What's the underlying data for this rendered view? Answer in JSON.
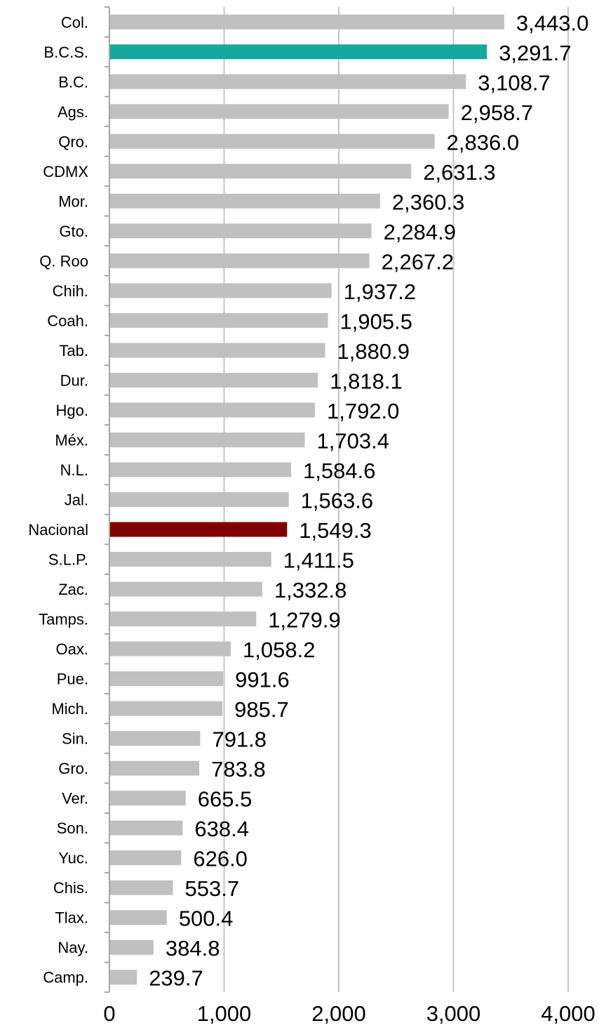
{
  "chart_data": {
    "type": "bar",
    "orientation": "horizontal",
    "categories": [
      "Col.",
      "B.C.S.",
      "B.C.",
      "Ags.",
      "Qro.",
      "CDMX",
      "Mor.",
      "Gto.",
      "Q. Roo",
      "Chih.",
      "Coah.",
      "Tab.",
      "Dur.",
      "Hgo.",
      "Méx.",
      "N.L.",
      "Jal.",
      "Nacional",
      "S.L.P.",
      "Zac.",
      "Tamps.",
      "Oax.",
      "Pue.",
      "Mich.",
      "Sin.",
      "Gro.",
      "Ver.",
      "Son.",
      "Yuc.",
      "Chis.",
      "Tlax.",
      "Nay.",
      "Camp."
    ],
    "values": [
      3443.0,
      3291.7,
      3108.7,
      2958.7,
      2836.0,
      2631.3,
      2360.3,
      2284.9,
      2267.2,
      1937.2,
      1905.5,
      1880.9,
      1818.1,
      1792.0,
      1703.4,
      1584.6,
      1563.6,
      1549.3,
      1411.5,
      1332.8,
      1279.9,
      1058.2,
      991.6,
      985.7,
      791.8,
      783.8,
      665.5,
      638.4,
      626.0,
      553.7,
      500.4,
      384.8,
      239.7
    ],
    "value_labels": [
      "3,443.0",
      "3,291.7",
      "3,108.7",
      "2,958.7",
      "2,836.0",
      "2,631.3",
      "2,360.3",
      "2,284.9",
      "2,267.2",
      "1,937.2",
      "1,905.5",
      "1,880.9",
      "1,818.1",
      "1,792.0",
      "1,703.4",
      "1,584.6",
      "1,563.6",
      "1,549.3",
      "1,411.5",
      "1,332.8",
      "1,279.9",
      "1,058.2",
      "991.6",
      "985.7",
      "791.8",
      "783.8",
      "665.5",
      "638.4",
      "626.0",
      "553.7",
      "500.4",
      "384.8",
      "239.7"
    ],
    "xlim": [
      0,
      4000
    ],
    "x_ticks": [
      0,
      1000,
      2000,
      3000,
      4000
    ],
    "x_tick_labels": [
      "0",
      "1,000",
      "2,000",
      "3,000",
      "4,000"
    ],
    "title": "",
    "xlabel": "",
    "ylabel": "",
    "grid": "vertical",
    "legend": "none",
    "colors": {
      "default": "#c0c0c0",
      "highlights": {
        "B.C.S.": "#17a89d",
        "Nacional": "#800000"
      },
      "grid": "#c6c6c6",
      "axis": "#a6a6a6"
    }
  }
}
